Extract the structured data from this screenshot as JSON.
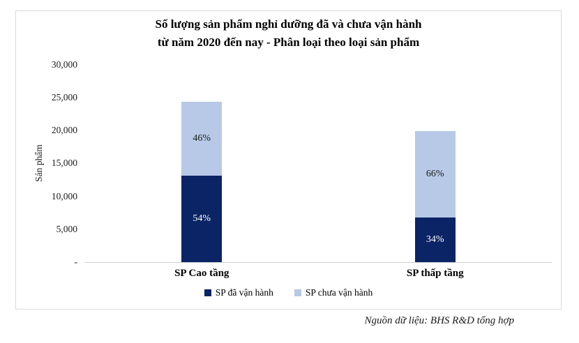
{
  "title": {
    "line1": "Số lượng sản phẩm nghỉ dưỡng đã và chưa vận hành",
    "line2": "từ năm 2020 đến nay - Phân loại theo loại sản phẩm"
  },
  "source": "Nguồn dữ liệu: BHS R&D tổng hợp",
  "colors": {
    "frame_border": "#D9D9D9",
    "axis_line": "#CFCFCF",
    "background": "#FFFFFF",
    "series_dark": "#0B2466",
    "series_light": "#B7C9E6"
  },
  "chart_data": {
    "type": "bar",
    "stacked": true,
    "title": "Số lượng sản phẩm nghỉ dưỡng đã và chưa vận hành từ năm 2020 đến nay - Phân loại theo loại sản phẩm",
    "xlabel": "",
    "ylabel": "Sản phẩm",
    "ylim": [
      0,
      30000
    ],
    "ytick_labels": [
      "30,000",
      "25,000",
      "20,000",
      "15,000",
      "10,000",
      "5,000",
      "-"
    ],
    "grid": false,
    "legend_position": "bottom",
    "categories": [
      "SP Cao tầng",
      "SP thấp tầng"
    ],
    "totals": [
      24400,
      19900
    ],
    "series": [
      {
        "name": "SP đã vận hành",
        "color": "#0B2466",
        "values": [
          13200,
          6800
        ],
        "labels": [
          "54%",
          "34%"
        ],
        "label_color": "#FFFFFF"
      },
      {
        "name": "SP chưa vận hành",
        "color": "#B7C9E6",
        "values": [
          11200,
          13100
        ],
        "labels": [
          "46%",
          "66%"
        ],
        "label_color": "#1A1A1A"
      }
    ]
  }
}
